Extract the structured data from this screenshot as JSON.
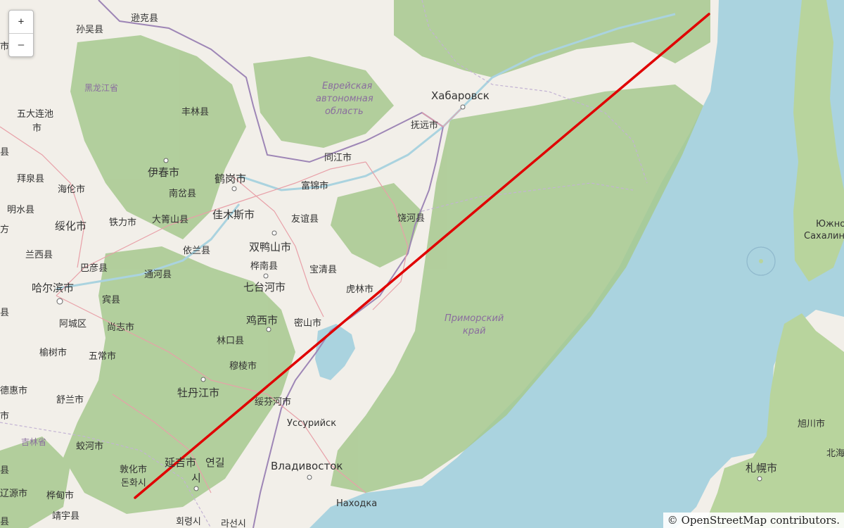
{
  "zoom": {
    "in_label": "+",
    "out_label": "–"
  },
  "attribution": {
    "prefix": "© ",
    "link": "OpenStreetMap",
    "suffix": " contributors."
  },
  "colors": {
    "sea": "#aad3df",
    "land": "#f2efe9",
    "forest": "#a7c98f",
    "route": "#e00000",
    "border": "#9e86b6"
  },
  "labels": {
    "xunke": "逊克县",
    "sunwu": "孙吴县",
    "heilongjiang": "黑龙江省",
    "wudalianchi": "五大连池",
    "wudalianchi_shi": "市",
    "fenglin": "丰林县",
    "yichun": "伊春市",
    "hegang": "鹤岗市",
    "nancha": "南岔县",
    "dafeng": "大箐山县",
    "jiamusi": "佳木斯市",
    "tieli": "铁力市",
    "suihua": "绥化市",
    "baiquan": "拜泉县",
    "hailun": "海伦市",
    "mingshui": "明水县",
    "lanxi": "兰西县",
    "bayan": "巴彦县",
    "tonghe": "通河县",
    "yilan": "依兰县",
    "shuangyashan": "双鸭山市",
    "huanan": "桦南县",
    "baoqing": "宝清县",
    "qitaihe": "七台河市",
    "harbin": "哈尔滨市",
    "binxian": "宾县",
    "acheng": "阿城区",
    "shangzhi": "尚志市",
    "jixi": "鸡西市",
    "mishan": "密山市",
    "linkou": "林口县",
    "yushu": "榆树市",
    "wuchang": "五常市",
    "muleng": "穆棱市",
    "dehui": "德惠市",
    "shulan": "舒兰市",
    "mudanjiang": "牡丹江市",
    "suifenhe": "绥芬河市",
    "jilin_prov": "吉林省",
    "jiaohe": "蛟河市",
    "yanji": "延吉市",
    "yeongil": "연길",
    "si": "시",
    "dunhua": "敦化市",
    "donhwa": "돈화시",
    "huadian": "桦甸市",
    "jingyu": "靖宇县",
    "hoeryong": "회령시",
    "rason": "라선시",
    "tongjiang": "同江市",
    "fujin": "富锦市",
    "youyi": "友谊县",
    "raohe": "饶河县",
    "hulin": "虎林市",
    "fuyuan": "抚远市",
    "khabarovsk": "Хабаровск",
    "jao1": "Еврейская",
    "jao2": "автономная",
    "jao3": "область",
    "primorsky1": "Приморский",
    "primorsky2": "край",
    "ussuriysk": "Уссурийск",
    "vladivostok": "Владивосток",
    "nakhodka": "Находка",
    "sakhalin1": "Южно",
    "sakhalin2": "Сахалин",
    "asahikawa": "旭川市",
    "sapporo": "札幌市",
    "hokkai": "北海",
    "edge_shi": "市",
    "edge_xian1": "县",
    "edge_fang": "方",
    "edge_xian2": "县",
    "edge_xian3": "县",
    "edge_shi2": "市",
    "edge_huimin": "德惠市",
    "edge_xian4": "县",
    "edge_yuan": "辽源市",
    "edge_xian5": "县"
  }
}
